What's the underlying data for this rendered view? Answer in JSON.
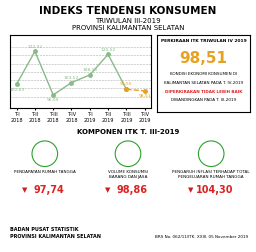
{
  "chart_data": {
    "type": "line",
    "title": "INDEKS TENDENSI KONSUMEN",
    "subtitle": [
      "TRIWULAN III-2019",
      "PROVINSI KALIMANTAN SELATAN"
    ],
    "categories": [
      "T-I\n2018",
      "T-II\n2018",
      "T-III\n2018",
      "T-IV\n2018",
      "T-I\n2019",
      "T-II\n2019",
      "T-III\n2019",
      "T-IV\n2019"
    ],
    "series": [
      {
        "color": "#88bb88",
        "line_style": "solid",
        "marker": "o",
        "values": [
          102.63,
          122.32,
          96.09,
          103.52,
          108.1,
          120.52,
          99.5,
          null
        ],
        "value_labels": [
          "102,63",
          "122,32",
          "96,09",
          "103,52",
          "108,10",
          "120,52",
          null,
          null
        ]
      },
      {
        "color": "#e8a020",
        "line_style": "dashed",
        "marker": "o",
        "values": [
          null,
          null,
          null,
          null,
          null,
          null,
          99.5,
          98.51
        ],
        "value_labels": [
          null,
          null,
          null,
          null,
          null,
          null,
          "99,50",
          "98,51"
        ]
      }
    ],
    "ylim": [
      88,
      132
    ],
    "yticks": [
      95,
      100,
      105,
      110,
      115,
      120,
      125
    ],
    "grid": true,
    "tick_labels": "x",
    "data_labels": true,
    "annotations": [
      {
        "text": "PERKIRAAN ITK TRIWULAN IV 2019"
      },
      {
        "text": "98,51",
        "color": "#e8a020"
      },
      {
        "text": "KONDISI EKONOMI KONSUMEN DI"
      },
      {
        "text": "KALIMANTAN SELATAN PADA T. IV-2019"
      },
      {
        "text": "DIPERKIRAKAN TIDAK LEBIH BAIK",
        "color": "#dd2222"
      },
      {
        "text": "DIBANDINGKAN PADA T. III-2019"
      },
      {
        "text": "KOMPONEN ITK T. III-2019"
      },
      {
        "text": "PENDAPATAN RUMAH TANGGA"
      },
      {
        "text": "VOLUME KONSUMSI\nBARANG DAN JASA"
      },
      {
        "text": "PENGARUH INFLASI TERHADAP TOTAL\nPENGELUARAN RUMAH TANGGA"
      },
      {
        "text": "▼",
        "color": "#cc2020"
      },
      {
        "text": "▼",
        "color": "#cc2020"
      },
      {
        "text": "▼",
        "color": "#cc2020"
      },
      {
        "text": "97,74",
        "color": "#dd2222"
      },
      {
        "text": "98,86",
        "color": "#dd2222"
      },
      {
        "text": "104,30",
        "color": "#dd2222"
      },
      {
        "text": "BADAN PUSAT STATISTIK"
      },
      {
        "text": "PROVINSI KALIMANTAN SELATAN"
      },
      {
        "text": "BRS No. 062/11/ITK. XXIII. 05 November 2019"
      }
    ]
  }
}
